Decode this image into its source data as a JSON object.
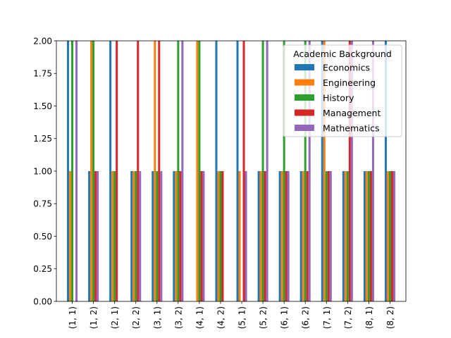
{
  "chart_data": {
    "type": "bar",
    "categories": [
      "(1, 1)",
      "(1, 2)",
      "(2, 1)",
      "(2, 2)",
      "(3, 1)",
      "(3, 2)",
      "(4, 1)",
      "(4, 2)",
      "(5, 1)",
      "(5, 2)",
      "(6, 1)",
      "(6, 2)",
      "(7, 1)",
      "(7, 2)",
      "(8, 1)",
      "(8, 2)"
    ],
    "series": [
      {
        "name": "Economics",
        "color": "#1f77b4",
        "values": [
          2,
          1,
          2,
          1,
          1,
          1,
          0,
          2,
          2,
          1,
          1,
          1,
          2,
          1,
          1,
          2
        ]
      },
      {
        "name": "Engineering",
        "color": "#ff7f0e",
        "values": [
          1,
          2,
          1,
          1,
          2,
          1,
          2,
          1,
          1,
          1,
          1,
          1,
          2,
          1,
          1,
          1
        ]
      },
      {
        "name": "History",
        "color": "#2ca02c",
        "values": [
          2,
          2,
          1,
          1,
          1,
          2,
          2,
          1,
          0,
          2,
          2,
          2,
          1,
          1,
          1,
          1
        ]
      },
      {
        "name": "Management",
        "color": "#d62728",
        "values": [
          0,
          1,
          2,
          2,
          2,
          1,
          1,
          1,
          2,
          1,
          1,
          1,
          1,
          2,
          1,
          1
        ]
      },
      {
        "name": "Mathematics",
        "color": "#9467bd",
        "values": [
          2,
          1,
          0,
          1,
          1,
          2,
          1,
          0,
          1,
          2,
          1,
          2,
          1,
          2,
          2,
          1
        ]
      }
    ],
    "title": "",
    "xlabel": "",
    "ylabel": "",
    "ylim": [
      0,
      2
    ],
    "yticks": [
      "0.00",
      "0.25",
      "0.50",
      "0.75",
      "1.00",
      "1.25",
      "1.50",
      "1.75",
      "2.00"
    ],
    "legend": {
      "title": "Academic Background",
      "placement": "upper-right"
    },
    "grid": false
  }
}
